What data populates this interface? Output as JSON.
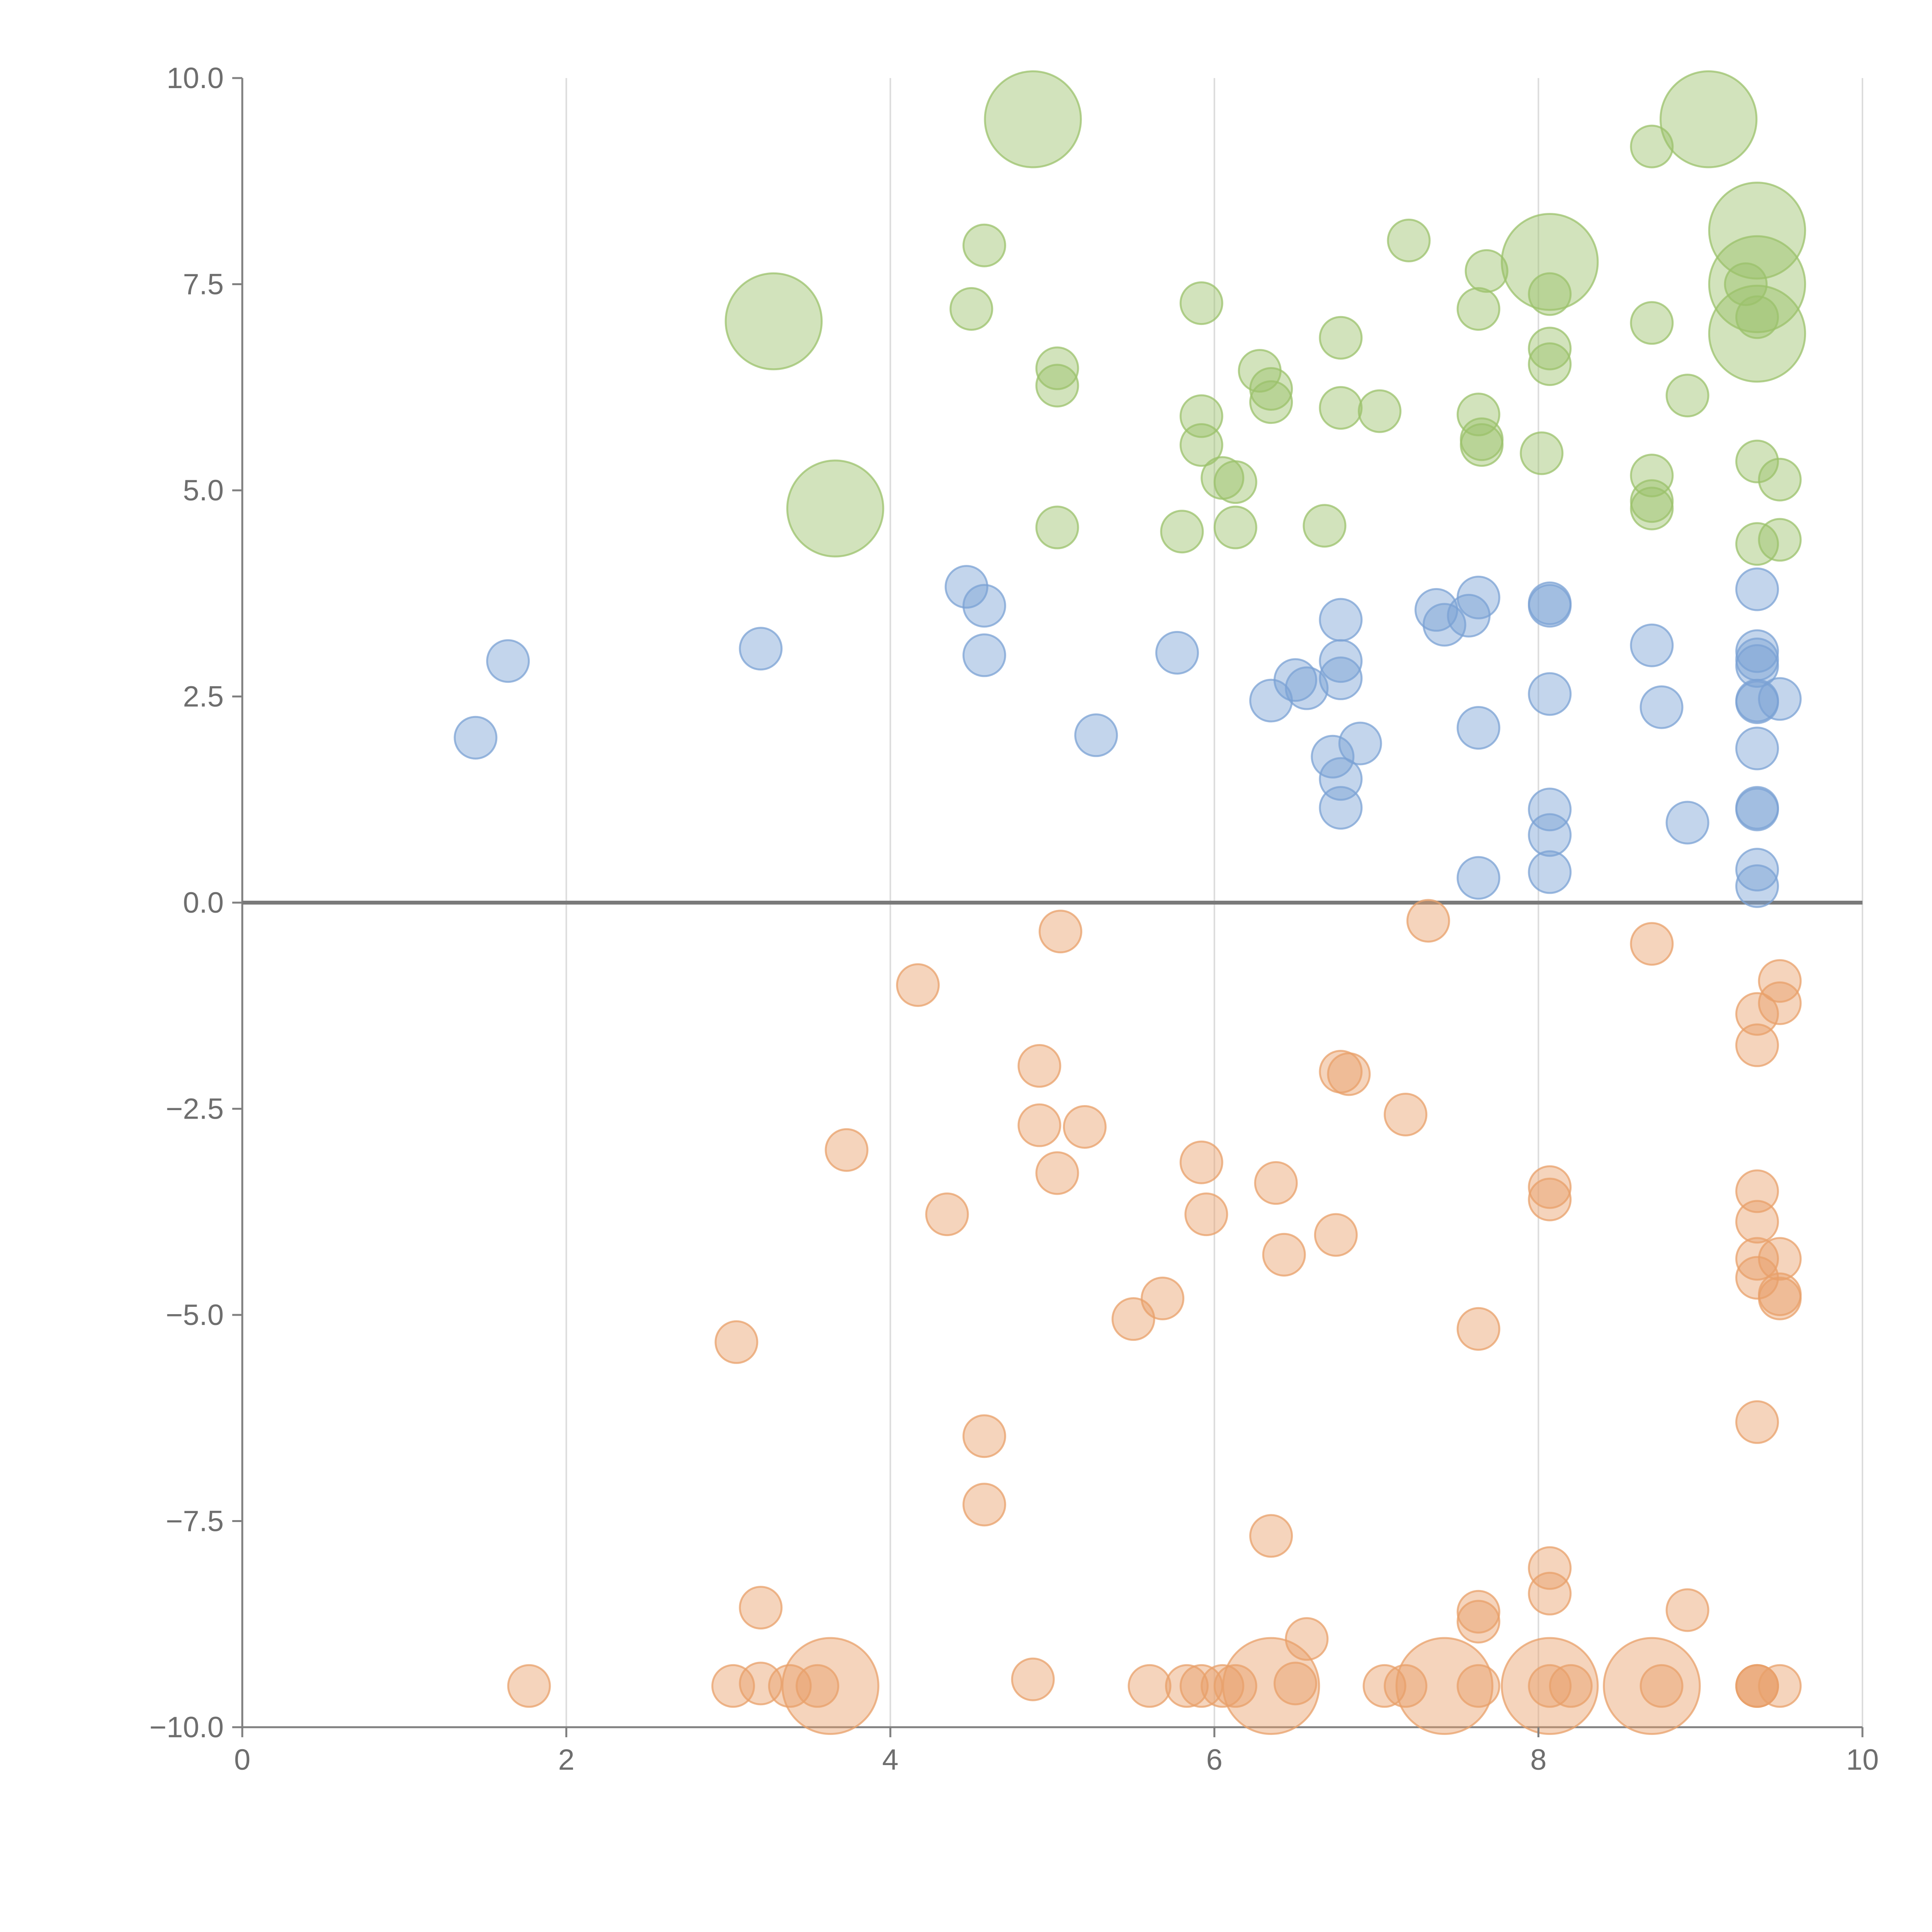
{
  "chart_data": {
    "type": "scatter",
    "title": "",
    "xlabel": "",
    "ylabel": "",
    "xlim": [
      0,
      10
    ],
    "ylim": [
      -10,
      10
    ],
    "grid": "vertical",
    "x_ticks": [
      0,
      2,
      4,
      6,
      8,
      10
    ],
    "x_tick_labels": [
      "0",
      "2",
      "4",
      "6",
      "8",
      "10"
    ],
    "y_ticks": [
      10,
      7.5,
      5,
      2.5,
      0,
      -2.5,
      -5,
      -7.5,
      -10
    ],
    "y_tick_labels": [
      "10.0",
      "7.5",
      "5.0",
      "2.5",
      "0.0",
      "−2.5",
      "−5.0",
      "−7.5",
      "−10.0"
    ],
    "series": [
      {
        "name": "green",
        "color": "#9bc26b",
        "points": [
          {
            "x": 4.88,
            "y": 9.5,
            "s": 2.3
          },
          {
            "x": 9.05,
            "y": 9.5,
            "s": 2.3
          },
          {
            "x": 8.7,
            "y": 9.17,
            "s": 1
          },
          {
            "x": 3.28,
            "y": 7.05,
            "s": 2.3
          },
          {
            "x": 3.66,
            "y": 4.78,
            "s": 2.3
          },
          {
            "x": 4.58,
            "y": 7.97,
            "s": 1
          },
          {
            "x": 4.5,
            "y": 7.2,
            "s": 1
          },
          {
            "x": 7.2,
            "y": 8.03,
            "s": 1
          },
          {
            "x": 8.07,
            "y": 7.77,
            "s": 2.3
          },
          {
            "x": 7.68,
            "y": 7.66,
            "s": 1
          },
          {
            "x": 7.63,
            "y": 7.2,
            "s": 1
          },
          {
            "x": 9.35,
            "y": 8.15,
            "s": 2.3
          },
          {
            "x": 9.35,
            "y": 7.5,
            "s": 2.3
          },
          {
            "x": 9.35,
            "y": 6.9,
            "s": 2.3
          },
          {
            "x": 9.28,
            "y": 7.5,
            "s": 1
          },
          {
            "x": 9.35,
            "y": 7.1,
            "s": 1
          },
          {
            "x": 8.07,
            "y": 7.38,
            "s": 1
          },
          {
            "x": 8.07,
            "y": 6.72,
            "s": 1
          },
          {
            "x": 8.07,
            "y": 6.53,
            "s": 1
          },
          {
            "x": 8.7,
            "y": 7.03,
            "s": 1
          },
          {
            "x": 8.92,
            "y": 6.15,
            "s": 1
          },
          {
            "x": 5.92,
            "y": 7.27,
            "s": 1
          },
          {
            "x": 6.78,
            "y": 6.85,
            "s": 1
          },
          {
            "x": 5.03,
            "y": 6.48,
            "s": 1
          },
          {
            "x": 5.03,
            "y": 6.27,
            "s": 1
          },
          {
            "x": 6.28,
            "y": 6.45,
            "s": 1
          },
          {
            "x": 6.35,
            "y": 6.23,
            "s": 1
          },
          {
            "x": 6.35,
            "y": 6.07,
            "s": 1
          },
          {
            "x": 6.78,
            "y": 6.0,
            "s": 1
          },
          {
            "x": 7.02,
            "y": 5.96,
            "s": 1
          },
          {
            "x": 5.92,
            "y": 5.9,
            "s": 1
          },
          {
            "x": 5.92,
            "y": 5.55,
            "s": 1
          },
          {
            "x": 7.63,
            "y": 5.92,
            "s": 1
          },
          {
            "x": 7.65,
            "y": 5.62,
            "s": 1
          },
          {
            "x": 7.65,
            "y": 5.55,
            "s": 1
          },
          {
            "x": 8.02,
            "y": 5.45,
            "s": 1
          },
          {
            "x": 6.05,
            "y": 5.15,
            "s": 1
          },
          {
            "x": 6.13,
            "y": 5.1,
            "s": 1
          },
          {
            "x": 8.7,
            "y": 5.18,
            "s": 1
          },
          {
            "x": 8.7,
            "y": 4.87,
            "s": 1
          },
          {
            "x": 8.7,
            "y": 4.78,
            "s": 1
          },
          {
            "x": 9.35,
            "y": 5.35,
            "s": 1
          },
          {
            "x": 9.49,
            "y": 5.13,
            "s": 1
          },
          {
            "x": 5.03,
            "y": 4.55,
            "s": 1
          },
          {
            "x": 5.8,
            "y": 4.5,
            "s": 1
          },
          {
            "x": 6.13,
            "y": 4.55,
            "s": 1
          },
          {
            "x": 6.68,
            "y": 4.57,
            "s": 1
          },
          {
            "x": 9.35,
            "y": 4.35,
            "s": 1
          },
          {
            "x": 9.49,
            "y": 4.4,
            "s": 1
          }
        ]
      },
      {
        "name": "blue",
        "color": "#7ba1d4",
        "points": [
          {
            "x": 1.64,
            "y": 2.93,
            "s": 1
          },
          {
            "x": 1.44,
            "y": 2.0,
            "s": 1
          },
          {
            "x": 3.2,
            "y": 3.08,
            "s": 1
          },
          {
            "x": 4.47,
            "y": 3.83,
            "s": 1
          },
          {
            "x": 4.58,
            "y": 3.6,
            "s": 1
          },
          {
            "x": 4.58,
            "y": 3.0,
            "s": 1
          },
          {
            "x": 5.77,
            "y": 3.03,
            "s": 1
          },
          {
            "x": 5.27,
            "y": 2.03,
            "s": 1
          },
          {
            "x": 6.78,
            "y": 3.43,
            "s": 1
          },
          {
            "x": 6.78,
            "y": 2.93,
            "s": 1
          },
          {
            "x": 6.78,
            "y": 2.72,
            "s": 1
          },
          {
            "x": 6.5,
            "y": 2.7,
            "s": 1
          },
          {
            "x": 6.57,
            "y": 2.6,
            "s": 1
          },
          {
            "x": 6.35,
            "y": 2.45,
            "s": 1
          },
          {
            "x": 6.73,
            "y": 1.77,
            "s": 1
          },
          {
            "x": 6.9,
            "y": 1.93,
            "s": 1
          },
          {
            "x": 6.78,
            "y": 1.5,
            "s": 1
          },
          {
            "x": 6.78,
            "y": 1.15,
            "s": 1
          },
          {
            "x": 7.37,
            "y": 3.55,
            "s": 1
          },
          {
            "x": 7.42,
            "y": 3.37,
            "s": 1
          },
          {
            "x": 7.57,
            "y": 3.48,
            "s": 1
          },
          {
            "x": 7.63,
            "y": 3.7,
            "s": 1
          },
          {
            "x": 8.07,
            "y": 3.63,
            "s": 1
          },
          {
            "x": 8.07,
            "y": 3.6,
            "s": 1
          },
          {
            "x": 8.07,
            "y": 2.53,
            "s": 1
          },
          {
            "x": 7.63,
            "y": 2.12,
            "s": 1
          },
          {
            "x": 8.07,
            "y": 1.13,
            "s": 1
          },
          {
            "x": 8.07,
            "y": 0.82,
            "s": 1
          },
          {
            "x": 8.07,
            "y": 0.37,
            "s": 1
          },
          {
            "x": 7.63,
            "y": 0.3,
            "s": 1
          },
          {
            "x": 8.7,
            "y": 3.12,
            "s": 1
          },
          {
            "x": 8.76,
            "y": 2.37,
            "s": 1
          },
          {
            "x": 8.92,
            "y": 0.97,
            "s": 1
          },
          {
            "x": 9.35,
            "y": 3.8,
            "s": 1
          },
          {
            "x": 9.35,
            "y": 3.05,
            "s": 1
          },
          {
            "x": 9.35,
            "y": 2.95,
            "s": 1
          },
          {
            "x": 9.35,
            "y": 2.87,
            "s": 1
          },
          {
            "x": 9.35,
            "y": 2.45,
            "s": 1
          },
          {
            "x": 9.35,
            "y": 2.43,
            "s": 1
          },
          {
            "x": 9.49,
            "y": 2.47,
            "s": 1
          },
          {
            "x": 9.35,
            "y": 1.87,
            "s": 1
          },
          {
            "x": 9.35,
            "y": 1.15,
            "s": 1
          },
          {
            "x": 9.35,
            "y": 1.13,
            "s": 1
          },
          {
            "x": 9.35,
            "y": 0.4,
            "s": 1
          },
          {
            "x": 9.35,
            "y": 0.2,
            "s": 1
          }
        ]
      },
      {
        "name": "orange",
        "color": "#e8a06a",
        "points": [
          {
            "x": 5.05,
            "y": -0.35,
            "s": 1
          },
          {
            "x": 7.32,
            "y": -0.22,
            "s": 1
          },
          {
            "x": 8.7,
            "y": -0.5,
            "s": 1
          },
          {
            "x": 4.17,
            "y": -1.0,
            "s": 1
          },
          {
            "x": 9.49,
            "y": -0.95,
            "s": 1
          },
          {
            "x": 9.49,
            "y": -1.22,
            "s": 1
          },
          {
            "x": 9.35,
            "y": -1.35,
            "s": 1
          },
          {
            "x": 9.35,
            "y": -1.73,
            "s": 1
          },
          {
            "x": 4.92,
            "y": -1.98,
            "s": 1
          },
          {
            "x": 6.78,
            "y": -2.05,
            "s": 1
          },
          {
            "x": 6.83,
            "y": -2.08,
            "s": 1
          },
          {
            "x": 7.18,
            "y": -2.57,
            "s": 1
          },
          {
            "x": 4.92,
            "y": -2.7,
            "s": 1
          },
          {
            "x": 5.2,
            "y": -2.72,
            "s": 1
          },
          {
            "x": 3.73,
            "y": -3.0,
            "s": 1
          },
          {
            "x": 5.03,
            "y": -3.28,
            "s": 1
          },
          {
            "x": 5.92,
            "y": -3.15,
            "s": 1
          },
          {
            "x": 6.38,
            "y": -3.4,
            "s": 1
          },
          {
            "x": 4.35,
            "y": -3.78,
            "s": 1
          },
          {
            "x": 5.95,
            "y": -3.78,
            "s": 1
          },
          {
            "x": 8.07,
            "y": -3.45,
            "s": 1
          },
          {
            "x": 8.07,
            "y": -3.6,
            "s": 1
          },
          {
            "x": 9.35,
            "y": -3.5,
            "s": 1
          },
          {
            "x": 9.35,
            "y": -3.87,
            "s": 1
          },
          {
            "x": 6.75,
            "y": -4.03,
            "s": 1
          },
          {
            "x": 6.43,
            "y": -4.27,
            "s": 1
          },
          {
            "x": 9.35,
            "y": -4.32,
            "s": 1
          },
          {
            "x": 9.49,
            "y": -4.32,
            "s": 1
          },
          {
            "x": 9.35,
            "y": -4.55,
            "s": 1
          },
          {
            "x": 9.49,
            "y": -4.75,
            "s": 1
          },
          {
            "x": 9.49,
            "y": -4.8,
            "s": 1
          },
          {
            "x": 5.68,
            "y": -4.8,
            "s": 1
          },
          {
            "x": 5.5,
            "y": -5.05,
            "s": 1
          },
          {
            "x": 3.05,
            "y": -5.33,
            "s": 1
          },
          {
            "x": 7.63,
            "y": -5.17,
            "s": 1
          },
          {
            "x": 9.35,
            "y": -6.3,
            "s": 1
          },
          {
            "x": 4.58,
            "y": -6.47,
            "s": 1
          },
          {
            "x": 4.58,
            "y": -7.3,
            "s": 1
          },
          {
            "x": 6.35,
            "y": -7.68,
            "s": 1
          },
          {
            "x": 8.07,
            "y": -8.07,
            "s": 1
          },
          {
            "x": 8.07,
            "y": -8.38,
            "s": 1
          },
          {
            "x": 3.2,
            "y": -8.55,
            "s": 1
          },
          {
            "x": 7.63,
            "y": -8.6,
            "s": 1
          },
          {
            "x": 7.63,
            "y": -8.72,
            "s": 1
          },
          {
            "x": 8.92,
            "y": -8.58,
            "s": 1
          },
          {
            "x": 6.57,
            "y": -8.93,
            "s": 1
          },
          {
            "x": 1.77,
            "y": -9.5,
            "s": 1
          },
          {
            "x": 3.03,
            "y": -9.5,
            "s": 1
          },
          {
            "x": 3.2,
            "y": -9.47,
            "s": 1
          },
          {
            "x": 3.38,
            "y": -9.5,
            "s": 1
          },
          {
            "x": 3.55,
            "y": -9.5,
            "s": 1
          },
          {
            "x": 3.63,
            "y": -9.5,
            "s": 2.3
          },
          {
            "x": 4.88,
            "y": -9.42,
            "s": 1
          },
          {
            "x": 5.6,
            "y": -9.5,
            "s": 1
          },
          {
            "x": 5.83,
            "y": -9.5,
            "s": 1
          },
          {
            "x": 5.92,
            "y": -9.5,
            "s": 1
          },
          {
            "x": 6.05,
            "y": -9.5,
            "s": 1
          },
          {
            "x": 6.13,
            "y": -9.5,
            "s": 1
          },
          {
            "x": 6.35,
            "y": -9.5,
            "s": 2.3
          },
          {
            "x": 6.5,
            "y": -9.47,
            "s": 1
          },
          {
            "x": 7.05,
            "y": -9.5,
            "s": 1
          },
          {
            "x": 7.18,
            "y": -9.5,
            "s": 1
          },
          {
            "x": 7.42,
            "y": -9.5,
            "s": 2.3
          },
          {
            "x": 7.63,
            "y": -9.5,
            "s": 1
          },
          {
            "x": 8.07,
            "y": -9.5,
            "s": 2.3
          },
          {
            "x": 8.07,
            "y": -9.5,
            "s": 1
          },
          {
            "x": 8.2,
            "y": -9.5,
            "s": 1
          },
          {
            "x": 8.7,
            "y": -9.5,
            "s": 2.3
          },
          {
            "x": 8.76,
            "y": -9.5,
            "s": 1
          },
          {
            "x": 9.35,
            "y": -9.5,
            "s": 1
          },
          {
            "x": 9.35,
            "y": -9.5,
            "s": 1
          },
          {
            "x": 9.35,
            "y": -9.5,
            "s": 1
          },
          {
            "x": 9.49,
            "y": -9.5,
            "s": 1
          }
        ]
      }
    ]
  }
}
